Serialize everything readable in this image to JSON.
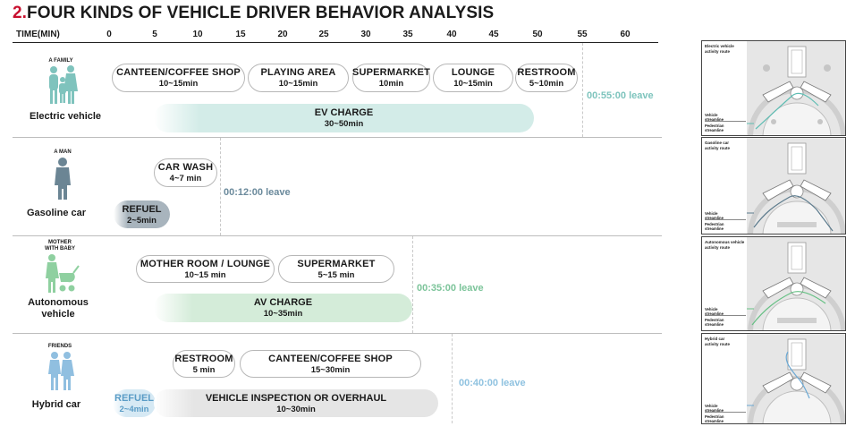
{
  "title": {
    "number": "2.",
    "text": "FOUR KINDS OF VEHICLE DRIVER BEHAVIOR ANALYSIS"
  },
  "axis": {
    "label": "TIME(MIN)",
    "ticks": [
      "0",
      "5",
      "10",
      "15",
      "20",
      "25",
      "30",
      "35",
      "40",
      "45",
      "50",
      "55",
      "60"
    ]
  },
  "rows": [
    {
      "group": "A FAMILY",
      "vehicle": "Electric vehicle",
      "activities": [
        {
          "name": "CANTEEN/COFFEE SHOP",
          "duration": "10~15min"
        },
        {
          "name": "PLAYING AREA",
          "duration": "10~15min"
        },
        {
          "name": "SUPERMARKET",
          "duration": "10min"
        },
        {
          "name": "LOUNGE",
          "duration": "10~15min"
        },
        {
          "name": "RESTROOM",
          "duration": "5~10min"
        }
      ],
      "bars": [
        {
          "name": "EV CHARGE",
          "duration": "30~50min"
        }
      ],
      "leave": "00:55:00 leave"
    },
    {
      "group": "A MAN",
      "vehicle": "Gasoline car",
      "activities": [
        {
          "name": "CAR WASH",
          "duration": "4~7 min"
        }
      ],
      "bars": [
        {
          "name": "REFUEL",
          "duration": "2~5min"
        }
      ],
      "leave": "00:12:00 leave"
    },
    {
      "group": "MOTHER\nWITH BABY",
      "vehicle": "Autonomous\nvehicle",
      "activities": [
        {
          "name": "MOTHER ROOM / LOUNGE",
          "duration": "10~15 min"
        },
        {
          "name": "SUPERMARKET",
          "duration": "5~15 min"
        }
      ],
      "bars": [
        {
          "name": "AV CHARGE",
          "duration": "10~35min"
        }
      ],
      "leave": "00:35:00 leave"
    },
    {
      "group": "FRIENDS",
      "vehicle": "Hybrid car",
      "activities": [
        {
          "name": "RESTROOM",
          "duration": "5 min"
        },
        {
          "name": "CANTEEN/COFFEE SHOP",
          "duration": "15~30min"
        }
      ],
      "bars": [
        {
          "name": "REFUEL",
          "duration": "2~4min"
        },
        {
          "name": "VEHICLE INSPECTION OR OVERHAUL",
          "duration": "10~30min"
        }
      ],
      "leave": "00:40:00 leave"
    }
  ],
  "panels": [
    {
      "title": "Electric vehicle\nactivity route",
      "legend": [
        "Vehicle streamline",
        "Pedestrian streamline"
      ]
    },
    {
      "title": "Gasoline car\nactivity route",
      "legend": [
        "Vehicle streamline",
        "Pedestrian streamline"
      ]
    },
    {
      "title": "Autonomous vehicle\nactivity route",
      "legend": [
        "Vehicle streamline",
        "Pedestrian streamline"
      ]
    },
    {
      "title": "Hybrid car\nactivity route",
      "legend": [
        "Vehicle streamline",
        "Pedestrian streamline"
      ]
    }
  ],
  "colors": {
    "title_number": "#c8102e",
    "ev_bar": "#d3ece8",
    "gas_refuel_bar": "#a8b4bd",
    "av_bar": "#d4ecd9",
    "hybrid_refuel_bar": "#d6e9f4",
    "hybrid_inspection_bar": "#e5e5e5",
    "ev_leave": "#7ec4bd",
    "gas_leave": "#6b8a9c",
    "av_leave": "#7cc49a",
    "hybrid_leave": "#8fc2e0"
  },
  "icons": [
    "family-icon",
    "man-icon",
    "mother-with-baby-icon",
    "friends-icon",
    "site-plan-map"
  ]
}
